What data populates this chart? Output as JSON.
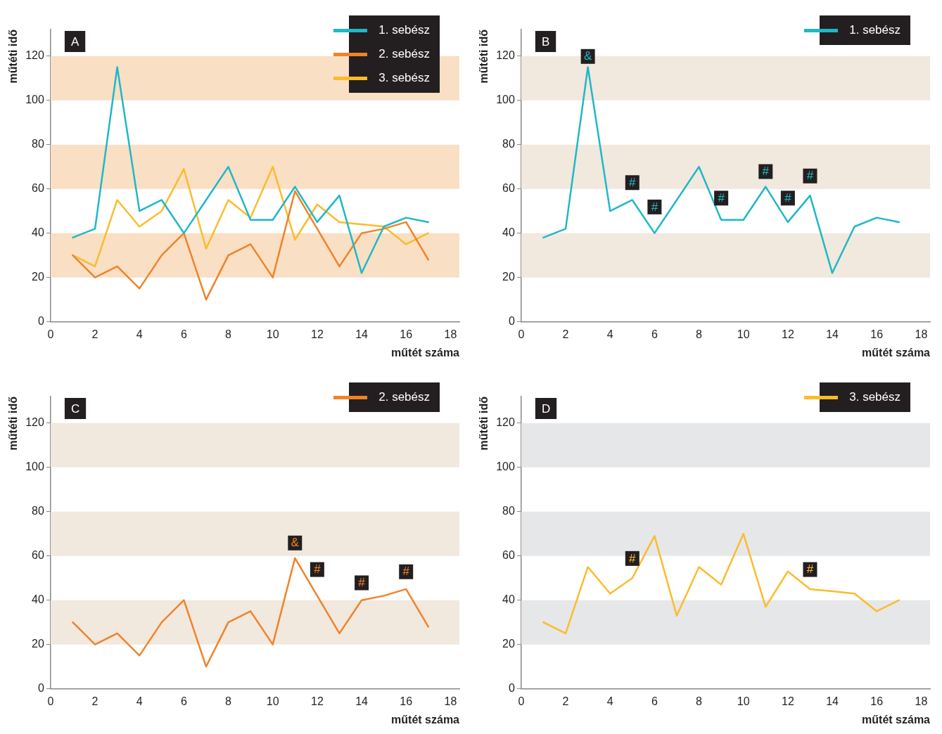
{
  "chart_data": [
    {
      "type": "line",
      "title": "A",
      "xlabel": "műtét száma",
      "ylabel": "műtéti idő",
      "x": [
        1,
        2,
        3,
        4,
        5,
        6,
        7,
        8,
        9,
        10,
        11,
        12,
        13,
        14,
        15,
        16,
        17
      ],
      "xlim": [
        0,
        18.4
      ],
      "xticks": [
        0,
        2,
        4,
        6,
        8,
        10,
        12,
        14,
        16,
        18
      ],
      "ylim": [
        0,
        132
      ],
      "yticks": [
        0,
        20,
        40,
        60,
        80,
        100,
        120
      ],
      "legend": "top right",
      "bands": [
        {
          "axis": "y",
          "from": 20,
          "to": 40,
          "color": "#f9dfc4"
        },
        {
          "axis": "y",
          "from": 60,
          "to": 80,
          "color": "#f9dfc4"
        },
        {
          "axis": "y",
          "from": 100,
          "to": 120,
          "color": "#f9dfc4"
        }
      ],
      "series": [
        {
          "name": "1. sebész",
          "color": "#1fb8c6",
          "values": [
            38,
            42,
            115,
            50,
            55,
            40,
            55,
            70,
            46,
            46,
            61,
            45,
            57,
            22,
            43,
            47,
            45
          ]
        },
        {
          "name": "2. sebész",
          "color": "#f0832a",
          "values": [
            30,
            20,
            25,
            15,
            30,
            40,
            10,
            30,
            35,
            20,
            59,
            42,
            25,
            40,
            42,
            45,
            28
          ]
        },
        {
          "name": "3. sebész",
          "color": "#fbbc2c",
          "values": [
            30,
            25,
            55,
            43,
            50,
            69,
            33,
            55,
            47,
            70,
            37,
            53,
            45,
            44,
            43,
            35,
            40
          ]
        }
      ]
    },
    {
      "type": "line",
      "title": "B",
      "xlabel": "műtét száma",
      "ylabel": "műtéti idő",
      "x": [
        1,
        2,
        3,
        4,
        5,
        6,
        7,
        8,
        9,
        10,
        11,
        12,
        13,
        14,
        15,
        16,
        17
      ],
      "xlim": [
        0,
        18.4
      ],
      "xticks": [
        0,
        2,
        4,
        6,
        8,
        10,
        12,
        14,
        16,
        18
      ],
      "ylim": [
        0,
        132
      ],
      "yticks": [
        0,
        20,
        40,
        60,
        80,
        100,
        120
      ],
      "legend": "top right",
      "bands": [
        {
          "axis": "y",
          "from": 20,
          "to": 40,
          "color": "#f1e8de"
        },
        {
          "axis": "y",
          "from": 60,
          "to": 80,
          "color": "#f1e8de"
        },
        {
          "axis": "y",
          "from": 100,
          "to": 120,
          "color": "#f1e8de"
        }
      ],
      "annotations": [
        {
          "text": "&",
          "x": 3,
          "y": 120
        },
        {
          "text": "#",
          "x": 5,
          "y": 63
        },
        {
          "text": "#",
          "x": 6,
          "y": 52
        },
        {
          "text": "#",
          "x": 9,
          "y": 56
        },
        {
          "text": "#",
          "x": 11,
          "y": 68
        },
        {
          "text": "#",
          "x": 12,
          "y": 56
        },
        {
          "text": "#",
          "x": 13,
          "y": 66
        }
      ],
      "series": [
        {
          "name": "1. sebész",
          "color": "#1fb8c6",
          "values": [
            38,
            42,
            115,
            50,
            55,
            40,
            55,
            70,
            46,
            46,
            61,
            45,
            57,
            22,
            43,
            47,
            45
          ]
        }
      ]
    },
    {
      "type": "line",
      "title": "C",
      "xlabel": "műtét száma",
      "ylabel": "műtéti idő",
      "x": [
        1,
        2,
        3,
        4,
        5,
        6,
        7,
        8,
        9,
        10,
        11,
        12,
        13,
        14,
        15,
        16,
        17
      ],
      "xlim": [
        0,
        18.4
      ],
      "xticks": [
        0,
        2,
        4,
        6,
        8,
        10,
        12,
        14,
        16,
        18
      ],
      "ylim": [
        0,
        132
      ],
      "yticks": [
        0,
        20,
        40,
        60,
        80,
        100,
        120
      ],
      "legend": "top right",
      "bands": [
        {
          "axis": "y",
          "from": 20,
          "to": 40,
          "color": "#f1e8de"
        },
        {
          "axis": "y",
          "from": 60,
          "to": 80,
          "color": "#f1e8de"
        },
        {
          "axis": "y",
          "from": 100,
          "to": 120,
          "color": "#f1e8de"
        }
      ],
      "annotations": [
        {
          "text": "&",
          "x": 11,
          "y": 66
        },
        {
          "text": "#",
          "x": 12,
          "y": 54
        },
        {
          "text": "#",
          "x": 14,
          "y": 48
        },
        {
          "text": "#",
          "x": 16,
          "y": 53
        }
      ],
      "series": [
        {
          "name": "2. sebész",
          "color": "#f0832a",
          "values": [
            30,
            20,
            25,
            15,
            30,
            40,
            10,
            30,
            35,
            20,
            59,
            42,
            25,
            40,
            42,
            45,
            28
          ]
        }
      ]
    },
    {
      "type": "line",
      "title": "D",
      "xlabel": "műtét száma",
      "ylabel": "műtéti idő",
      "x": [
        1,
        2,
        3,
        4,
        5,
        6,
        7,
        8,
        9,
        10,
        11,
        12,
        13,
        14,
        15,
        16,
        17
      ],
      "xlim": [
        0,
        18.4
      ],
      "xticks": [
        0,
        2,
        4,
        6,
        8,
        10,
        12,
        14,
        16,
        18
      ],
      "ylim": [
        0,
        132
      ],
      "yticks": [
        0,
        20,
        40,
        60,
        80,
        100,
        120
      ],
      "legend": "top right",
      "bands": [
        {
          "axis": "y",
          "from": 20,
          "to": 40,
          "color": "#e6e7e8"
        },
        {
          "axis": "y",
          "from": 60,
          "to": 80,
          "color": "#e6e7e8"
        },
        {
          "axis": "y",
          "from": 100,
          "to": 120,
          "color": "#e6e7e8"
        }
      ],
      "annotations": [
        {
          "text": "#",
          "x": 5,
          "y": 59
        },
        {
          "text": "#",
          "x": 13,
          "y": 54
        }
      ],
      "series": [
        {
          "name": "3. sebész",
          "color": "#fbbc2c",
          "values": [
            30,
            25,
            55,
            43,
            50,
            69,
            33,
            55,
            47,
            70,
            37,
            53,
            45,
            44,
            43,
            35,
            40
          ]
        }
      ]
    }
  ]
}
